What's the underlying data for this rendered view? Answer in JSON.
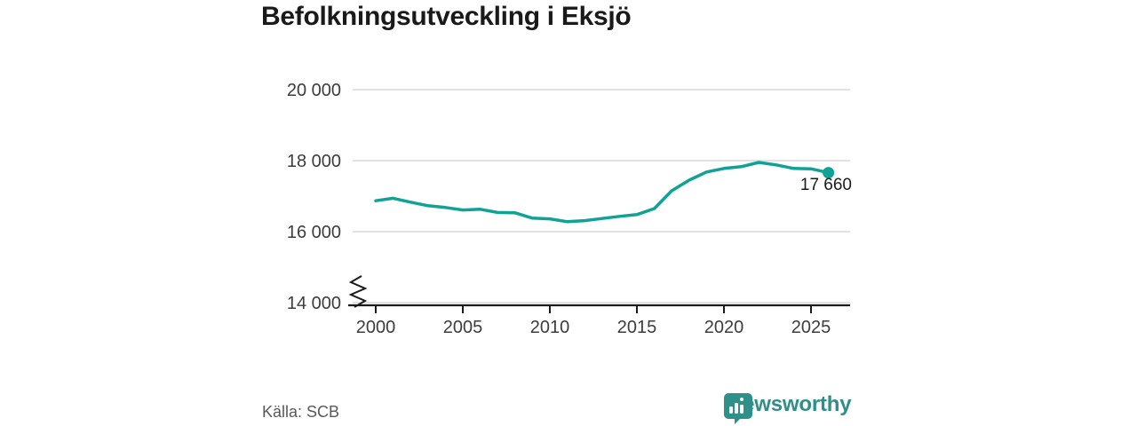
{
  "chart_data": {
    "type": "line",
    "title": "Befolkningsutveckling i Eksjö",
    "xlabel": "",
    "ylabel": "",
    "x": [
      2000,
      2001,
      2002,
      2003,
      2004,
      2005,
      2006,
      2007,
      2008,
      2009,
      2010,
      2011,
      2012,
      2013,
      2014,
      2015,
      2016,
      2017,
      2018,
      2019,
      2020,
      2021,
      2022,
      2023,
      2024,
      2025,
      2026
    ],
    "values": [
      16870,
      16940,
      16830,
      16730,
      16680,
      16610,
      16630,
      16540,
      16530,
      16380,
      16360,
      16280,
      16310,
      16370,
      16430,
      16480,
      16650,
      17150,
      17450,
      17680,
      17780,
      17830,
      17950,
      17880,
      17780,
      17770,
      17660
    ],
    "end_value": 17660,
    "end_label": "17 660",
    "yticks": {
      "values": [
        20000,
        18000,
        16000,
        14000
      ],
      "labels": [
        "20 000",
        "18 000",
        "16 000",
        "14 000"
      ]
    },
    "xticks": {
      "values": [
        2000,
        2005,
        2010,
        2015,
        2020,
        2025
      ],
      "labels": [
        "2000",
        "2005",
        "2010",
        "2015",
        "2020",
        "2025"
      ]
    },
    "ylim": [
      14000,
      20000
    ],
    "axis_break": true,
    "grid": "horizontal",
    "legend": "none",
    "line_color": "#11a296"
  },
  "footer": {
    "source": "Källa: SCB",
    "brand": "Newsworthy",
    "brand_color": "#2e8e88",
    "icon_color": "#2e9189"
  }
}
